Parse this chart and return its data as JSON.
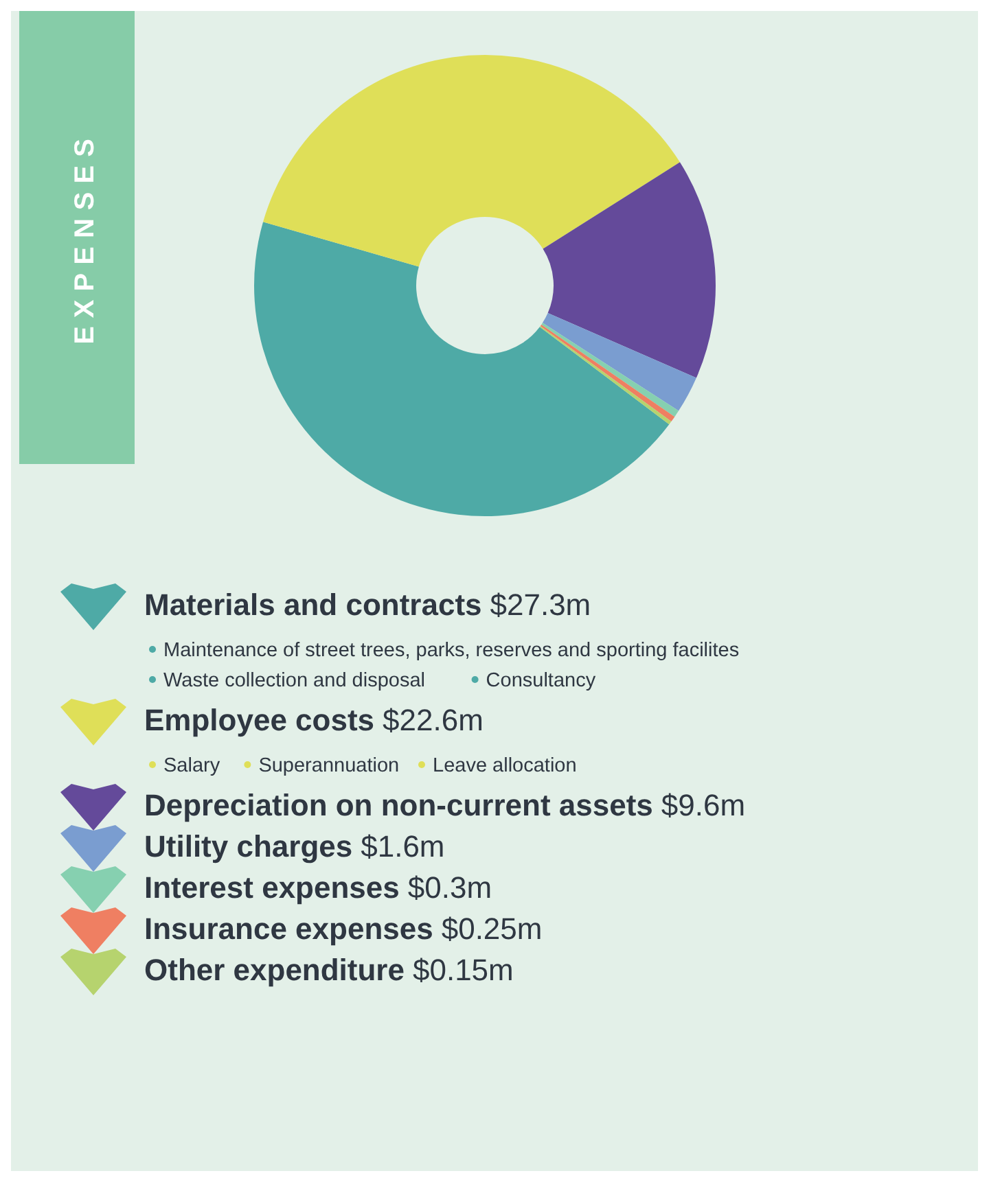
{
  "chart_data": {
    "type": "donut",
    "title": "EXPENSES",
    "categories": [
      "Materials and contracts",
      "Employee costs",
      "Depreciation on non-current assets",
      "Utility charges",
      "Interest expenses",
      "Insurance expenses",
      "Other expenditure"
    ],
    "values": [
      27.3,
      22.6,
      9.6,
      1.6,
      0.3,
      0.25,
      0.15
    ],
    "value_labels": [
      "$27.3m",
      "$22.6m",
      "$9.6m",
      "$1.6m",
      "$0.3m",
      "$0.25m",
      "$0.15m"
    ],
    "colors": [
      "#4eaaa6",
      "#dfdf58",
      "#644a9a",
      "#7a9dd0",
      "#86d0b0",
      "#ef7f62",
      "#b6d36e"
    ],
    "annotations": [
      {
        "text": "Maintenance of street trees, parks, reserves and sporting facilites",
        "x": "Materials and contracts"
      },
      {
        "text": "Waste collection and disposal",
        "x": "Materials and contracts"
      },
      {
        "text": "Consultancy",
        "x": "Materials and contracts"
      },
      {
        "text": "Salary",
        "x": "Employee costs"
      },
      {
        "text": "Superannuation",
        "x": "Employee costs"
      },
      {
        "text": "Leave allocation",
        "x": "Employee costs"
      }
    ],
    "legend": "bottom"
  }
}
